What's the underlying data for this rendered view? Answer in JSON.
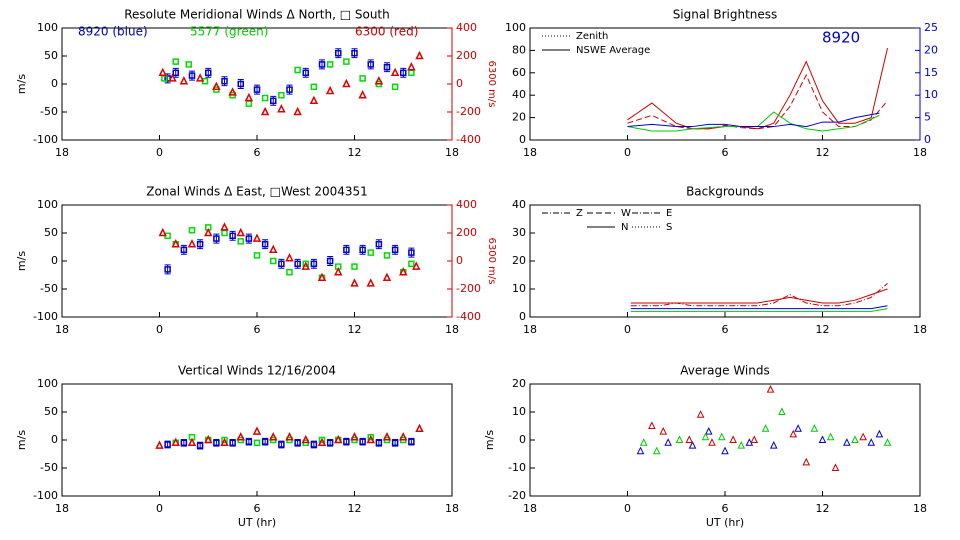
{
  "chart_data": [
    {
      "type": "scatter",
      "title": "Resolute Meridional Winds Δ North, □ South",
      "ylabel": "m/s",
      "y2label": "6300 m/s",
      "y2color": "#cc0000",
      "xlim": [
        -6,
        18
      ],
      "xticks": [
        {
          "value": -6,
          "label": "18"
        },
        0,
        6,
        12,
        18
      ],
      "ylim": [
        -100,
        100
      ],
      "yticks": [
        -100,
        -50,
        0,
        50,
        100
      ],
      "y2lim": [
        -400,
        400
      ],
      "y2ticks": [
        -400,
        -200,
        0,
        200,
        400
      ],
      "annotations": [
        {
          "text": "8920 (blue)",
          "color": "#0000aa"
        },
        {
          "text": "5577 (green)",
          "color": "#00cc00"
        },
        {
          "text": "6300 (red)",
          "color": "#cc0000"
        }
      ],
      "series": [
        {
          "color": "#0000cc",
          "marker": "square",
          "x": [
            0.5,
            1,
            2,
            3,
            4,
            5,
            6,
            7,
            8,
            9,
            10,
            11,
            12,
            13,
            14,
            15
          ],
          "values": [
            10,
            20,
            15,
            20,
            5,
            0,
            -10,
            -30,
            -10,
            20,
            35,
            55,
            55,
            35,
            30,
            20
          ],
          "errors": [
            8,
            8,
            8,
            8,
            8,
            8,
            8,
            8,
            8,
            8,
            8,
            8,
            8,
            8,
            8,
            8
          ]
        },
        {
          "color": "#00dd00",
          "marker": "square",
          "x": [
            0.3,
            1,
            1.8,
            2.8,
            3.5,
            4.5,
            5.5,
            6.5,
            7.5,
            8.5,
            9.5,
            10.5,
            11.5,
            12.5,
            13.5,
            14.5,
            15.5
          ],
          "values": [
            10,
            40,
            35,
            5,
            -10,
            -20,
            -35,
            -25,
            -20,
            25,
            -5,
            35,
            40,
            10,
            0,
            -5,
            20
          ]
        },
        {
          "color": "#dd0000",
          "marker": "triangle",
          "axis": "y2",
          "x": [
            0.2,
            0.8,
            1.5,
            2.5,
            3.5,
            4.5,
            5.5,
            6.5,
            7.5,
            8.5,
            9.5,
            10.5,
            11.5,
            12.5,
            13.5,
            14.5,
            15.5,
            16
          ],
          "values": [
            80,
            40,
            20,
            40,
            -20,
            -60,
            -100,
            -200,
            -180,
            -200,
            -120,
            -50,
            0,
            -80,
            20,
            80,
            120,
            200
          ]
        }
      ]
    },
    {
      "type": "line",
      "title": "Signal Brightness",
      "y2color": "#0000cc",
      "xlim": [
        -6,
        18
      ],
      "xticks": [
        {
          "value": -6,
          "label": "18"
        },
        0,
        6,
        12,
        18
      ],
      "ylim": [
        0,
        100
      ],
      "yticks": [
        0,
        20,
        40,
        60,
        80,
        100
      ],
      "y2lim": [
        0,
        25
      ],
      "y2ticks": [
        0,
        5,
        10,
        15,
        20,
        25
      ],
      "annotations": [
        {
          "text": "8920",
          "color": "#0000cc"
        }
      ],
      "legend": [
        {
          "label": "Zenith",
          "style": "dotted"
        },
        {
          "label": "NSWE Average",
          "style": "solid"
        }
      ],
      "series": [
        {
          "color": "#cc0000",
          "style": "solid",
          "x": [
            0,
            1.5,
            3,
            4,
            5,
            6,
            7,
            8,
            9,
            10,
            11,
            12,
            13,
            14,
            15,
            16
          ],
          "values": [
            18,
            33,
            15,
            10,
            10,
            12,
            12,
            10,
            15,
            40,
            70,
            35,
            15,
            15,
            20,
            82
          ]
        },
        {
          "color": "#cc0000",
          "style": "dashed",
          "x": [
            0,
            1.5,
            3,
            4,
            5,
            6,
            7,
            8,
            9,
            10,
            11,
            12,
            13,
            14,
            15,
            16
          ],
          "values": [
            15,
            22,
            12,
            10,
            10,
            13,
            11,
            10,
            12,
            30,
            58,
            25,
            12,
            12,
            18,
            35
          ]
        },
        {
          "color": "#00cc00",
          "style": "solid",
          "x": [
            0,
            1.5,
            3,
            4,
            5,
            6,
            7,
            8,
            9,
            10,
            11,
            12,
            13,
            14,
            15.5
          ],
          "values": [
            12,
            8,
            8,
            10,
            11,
            12,
            12,
            12,
            25,
            15,
            10,
            8,
            10,
            12,
            22
          ]
        },
        {
          "color": "#0000cc",
          "style": "solid",
          "axis": "y2",
          "x": [
            0,
            1.5,
            3,
            4,
            5,
            6,
            7,
            8,
            9,
            10,
            11,
            12,
            13,
            14,
            15.5
          ],
          "values": [
            3,
            3.5,
            3,
            3,
            3.5,
            3.5,
            3,
            3,
            3,
            3.5,
            3,
            4,
            4,
            5,
            6
          ]
        }
      ]
    },
    {
      "type": "scatter",
      "title": "Zonal Winds Δ East, □West 2004351",
      "ylabel": "m/s",
      "y2label": "6300 m/s",
      "y2color": "#cc0000",
      "xlim": [
        -6,
        18
      ],
      "xticks": [
        {
          "value": -6,
          "label": "18"
        },
        0,
        6,
        12,
        18
      ],
      "ylim": [
        -100,
        100
      ],
      "yticks": [
        -100,
        -50,
        0,
        50,
        100
      ],
      "y2lim": [
        -400,
        400
      ],
      "y2ticks": [
        -400,
        -200,
        0,
        200,
        400
      ],
      "series": [
        {
          "color": "#0000cc",
          "marker": "square",
          "x": [
            0.5,
            1.5,
            2.5,
            3.5,
            4.5,
            5.5,
            6.5,
            7.5,
            8.5,
            9.5,
            10.5,
            11.5,
            12.5,
            13.5,
            14.5,
            15.5
          ],
          "values": [
            -15,
            20,
            30,
            40,
            45,
            40,
            30,
            -5,
            -5,
            -5,
            0,
            20,
            20,
            30,
            20,
            15
          ],
          "errors": [
            8,
            8,
            8,
            8,
            8,
            8,
            8,
            8,
            8,
            8,
            8,
            8,
            8,
            8,
            8,
            8
          ]
        },
        {
          "color": "#00dd00",
          "marker": "square",
          "x": [
            0.5,
            1,
            2,
            3,
            4,
            5,
            6,
            7,
            8,
            9,
            10,
            11,
            12,
            13,
            14,
            15,
            15.5
          ],
          "values": [
            45,
            30,
            55,
            60,
            50,
            35,
            10,
            0,
            -20,
            -5,
            -30,
            -10,
            -10,
            15,
            10,
            -20,
            -5
          ]
        },
        {
          "color": "#dd0000",
          "marker": "triangle",
          "axis": "y2",
          "x": [
            0.2,
            1,
            2,
            3,
            4,
            5,
            6,
            7,
            8,
            9,
            10,
            11,
            12,
            13,
            14,
            15,
            15.8
          ],
          "values": [
            200,
            120,
            120,
            200,
            240,
            200,
            160,
            80,
            20,
            -40,
            -120,
            -80,
            -160,
            -160,
            -120,
            -80,
            -40
          ]
        }
      ]
    },
    {
      "type": "line",
      "title": "Backgrounds",
      "xlim": [
        -6,
        18
      ],
      "xticks": [
        {
          "value": -6,
          "label": "18"
        },
        0,
        6,
        12,
        18
      ],
      "ylim": [
        0,
        40
      ],
      "yticks": [
        0,
        10,
        20,
        30,
        40
      ],
      "legend": [
        {
          "label": "Z",
          "style": "dashdot"
        },
        {
          "label": "N",
          "style": "solid"
        },
        {
          "label": "W",
          "style": "dashed"
        },
        {
          "label": "S",
          "style": "dotted"
        },
        {
          "label": "E",
          "style": "dashdot"
        }
      ],
      "series": [
        {
          "color": "#cc0000",
          "style": "solid",
          "x": [
            0.2,
            1,
            2,
            3,
            4,
            5,
            6,
            7,
            8,
            9,
            10,
            11,
            12,
            13,
            14,
            15,
            16
          ],
          "values": [
            5,
            5,
            5,
            5,
            5,
            5,
            5,
            5,
            5,
            6,
            7,
            6,
            5,
            5,
            6,
            8,
            10
          ]
        },
        {
          "color": "#cc0000",
          "style": "dashdot",
          "x": [
            0.2,
            1,
            2,
            3,
            4,
            5,
            6,
            7,
            8,
            9,
            10,
            11,
            12,
            13,
            14,
            15,
            16
          ],
          "values": [
            4,
            4,
            4,
            5,
            4,
            4,
            4,
            4,
            4,
            5,
            8,
            5,
            4,
            4,
            5,
            7,
            12
          ]
        },
        {
          "color": "#00cc00",
          "style": "solid",
          "x": [
            0.2,
            1,
            2,
            3,
            4,
            5,
            6,
            7,
            8,
            9,
            10,
            11,
            12,
            13,
            14,
            15,
            16
          ],
          "values": [
            2,
            2,
            2,
            2,
            2,
            2,
            2,
            2,
            2,
            2,
            2,
            2,
            2,
            2,
            2,
            2,
            3
          ]
        },
        {
          "color": "#0000cc",
          "style": "solid",
          "x": [
            0.2,
            1,
            2,
            3,
            4,
            5,
            6,
            7,
            8,
            9,
            10,
            11,
            12,
            13,
            14,
            15,
            16
          ],
          "values": [
            3,
            3,
            3,
            3,
            3,
            3,
            3,
            3,
            3,
            3,
            3,
            3,
            3,
            3,
            3,
            3,
            4
          ]
        }
      ]
    },
    {
      "type": "scatter",
      "title": "Vertical Winds 12/16/2004",
      "ylabel": "m/s",
      "xlabel": "UT (hr)",
      "xlim": [
        -6,
        18
      ],
      "xticks": [
        {
          "value": -6,
          "label": "18"
        },
        0,
        6,
        12,
        18
      ],
      "ylim": [
        -100,
        100
      ],
      "yticks": [
        -100,
        -50,
        0,
        50,
        100
      ],
      "series": [
        {
          "color": "#0000cc",
          "marker": "square",
          "x": [
            0.5,
            1.5,
            2.5,
            3.5,
            4.5,
            5.5,
            6.5,
            7.5,
            8.5,
            9.5,
            10.5,
            11.5,
            12.5,
            13.5,
            14.5,
            15.5
          ],
          "values": [
            -8,
            -5,
            -10,
            -5,
            -5,
            -3,
            -3,
            -8,
            -5,
            -8,
            -5,
            -3,
            -3,
            -5,
            -5,
            -3
          ],
          "errors": [
            6,
            6,
            6,
            6,
            6,
            6,
            6,
            6,
            6,
            6,
            6,
            6,
            6,
            6,
            6,
            6
          ]
        },
        {
          "color": "#00dd00",
          "marker": "square",
          "x": [
            1,
            2,
            3,
            4,
            5,
            6,
            7,
            8,
            9,
            10,
            11,
            12,
            13,
            14,
            15
          ],
          "values": [
            -5,
            5,
            0,
            0,
            0,
            -5,
            0,
            0,
            -5,
            0,
            0,
            0,
            5,
            0,
            0
          ]
        },
        {
          "color": "#dd0000",
          "marker": "triangle",
          "x": [
            0,
            1,
            2,
            3,
            4,
            5,
            6,
            7,
            8,
            9,
            10,
            11,
            12,
            13,
            14,
            15,
            16
          ],
          "values": [
            -10,
            -5,
            -5,
            0,
            -5,
            5,
            15,
            5,
            5,
            0,
            -5,
            0,
            5,
            0,
            5,
            5,
            20
          ]
        }
      ]
    },
    {
      "type": "scatter",
      "title": "Average Winds",
      "ylabel": "m/s",
      "xlabel": "UT (hr)",
      "xlim": [
        -6,
        18
      ],
      "xticks": [
        {
          "value": -6,
          "label": "18"
        },
        0,
        6,
        12,
        18
      ],
      "ylim": [
        -20,
        20
      ],
      "yticks": [
        -20,
        -10,
        0,
        10,
        20
      ],
      "series": [
        {
          "color": "#0000cc",
          "marker": "triangle-open",
          "x": [
            0.8,
            2.5,
            4,
            5,
            6,
            7.5,
            9,
            10.5,
            12,
            13.5,
            15,
            15.5
          ],
          "values": [
            -4,
            -1,
            -2,
            3,
            -4,
            -1,
            -2,
            4,
            0,
            -1,
            -1,
            2
          ]
        },
        {
          "color": "#00cc00",
          "marker": "triangle-open",
          "x": [
            1,
            1.8,
            3.2,
            4.8,
            5.8,
            7,
            8.5,
            9.5,
            11.5,
            12.5,
            14,
            16
          ],
          "values": [
            -1,
            -4,
            0,
            1,
            1,
            -2,
            4,
            10,
            4,
            1,
            0,
            -1
          ]
        },
        {
          "color": "#cc0000",
          "marker": "triangle-open",
          "x": [
            1.5,
            2.2,
            3.8,
            4.5,
            5.2,
            6.5,
            7.8,
            8.8,
            10.2,
            11,
            12.8,
            14.5
          ],
          "values": [
            5,
            3,
            0,
            9,
            -1,
            0,
            0,
            18,
            2,
            -8,
            -10,
            1
          ]
        }
      ]
    }
  ]
}
